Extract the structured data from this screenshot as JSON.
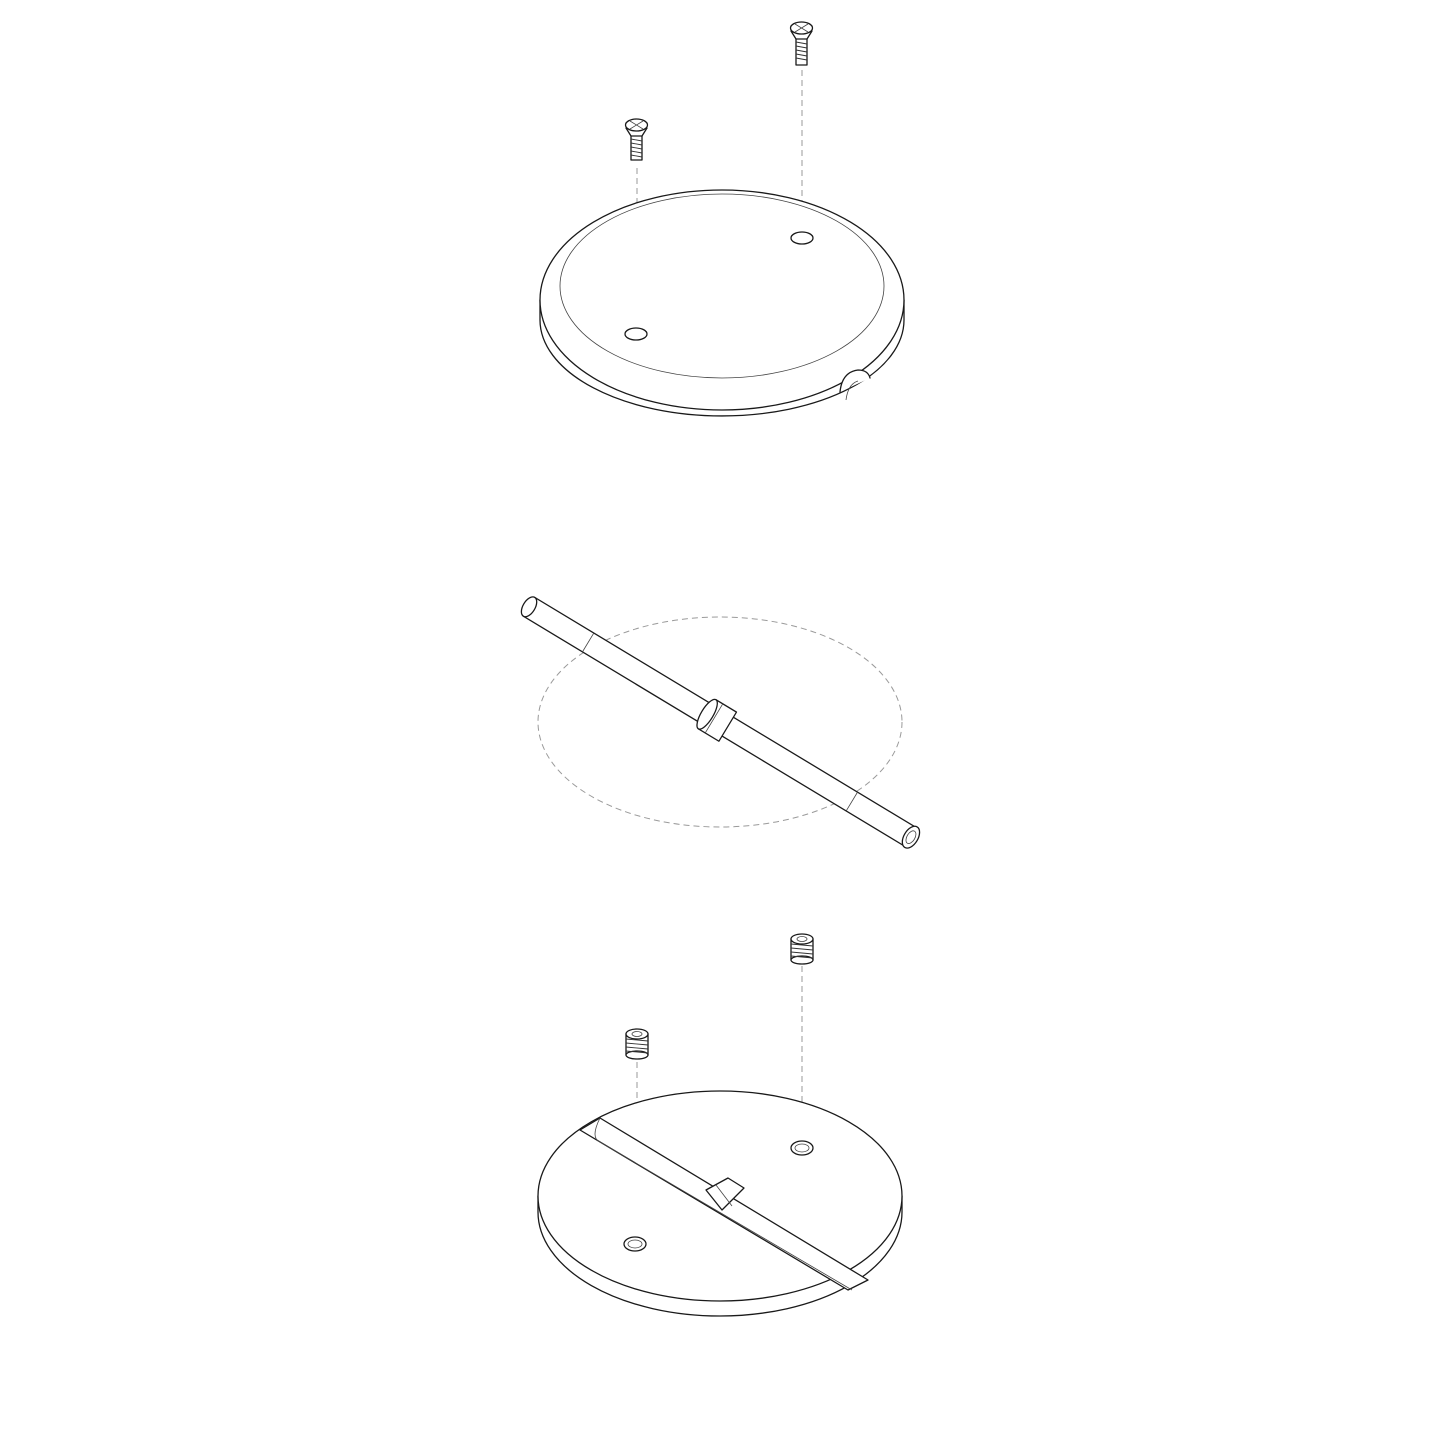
{
  "diagram": {
    "kind": "exploded-assembly-line-drawing",
    "colors": {
      "line": "#1a1a1a",
      "guide": "#9a9a9a",
      "background": "#ffffff"
    },
    "parts": [
      {
        "id": "top-cap",
        "label": ""
      },
      {
        "id": "countersunk-screw",
        "label": "",
        "count": 2
      },
      {
        "id": "tube",
        "label": ""
      },
      {
        "id": "base-plate",
        "label": ""
      },
      {
        "id": "set-screw",
        "label": "",
        "count": 2
      }
    ]
  }
}
